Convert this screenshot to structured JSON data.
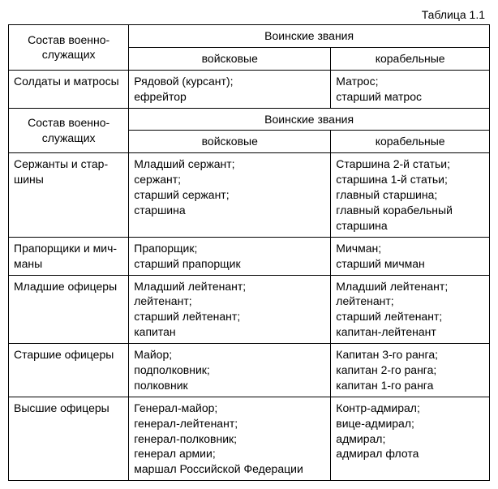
{
  "caption": "Таблица 1.1",
  "headers": {
    "composition": "Состав военно-служащих",
    "ranks": "Воинские звания",
    "army": "войсковые",
    "navy": "корабельные"
  },
  "rows": [
    {
      "category": "Солдаты и матросы",
      "army": [
        "Рядовой (курсант);",
        "ефрейтор"
      ],
      "navy": [
        "Матрос;",
        "старший матрос"
      ]
    },
    {
      "category": "Сержанты и стар-шины",
      "army": [
        "Младший сержант;",
        "сержант;",
        "старший сержант;",
        "старшина"
      ],
      "navy": [
        "Старшина 2-й статьи;",
        "старшина 1-й статьи;",
        "главный старшина;",
        "главный корабельный старшина"
      ]
    },
    {
      "category": "Прапорщики и мич-маны",
      "army": [
        "Прапорщик;",
        "старший прапорщик"
      ],
      "navy": [
        "Мичман;",
        "старший мичман"
      ]
    },
    {
      "category": "Младшие офицеры",
      "army": [
        "Младший лейтенант;",
        "лейтенант;",
        "старший лейтенант;",
        "капитан"
      ],
      "navy": [
        "Младший лейтенант;",
        "лейтенант;",
        "старший лейтенант;",
        "капитан-лейтенант"
      ]
    },
    {
      "category": "Старшие офицеры",
      "army": [
        "Майор;",
        "подполковник;",
        "полковник"
      ],
      "navy": [
        "Капитан 3-го ранга;",
        "капитан 2-го ранга;",
        "капитан 1-го ранга"
      ]
    },
    {
      "category": "Высшие офицеры",
      "army": [
        "Генерал-майор;",
        "генерал-лейтенант;",
        "генерал-полковник;",
        "генерал армии;",
        "маршал Российской Федерации"
      ],
      "navy": [
        "Контр-адмирал;",
        "вице-адмирал;",
        "адмирал;",
        "адмирал флота"
      ]
    }
  ]
}
